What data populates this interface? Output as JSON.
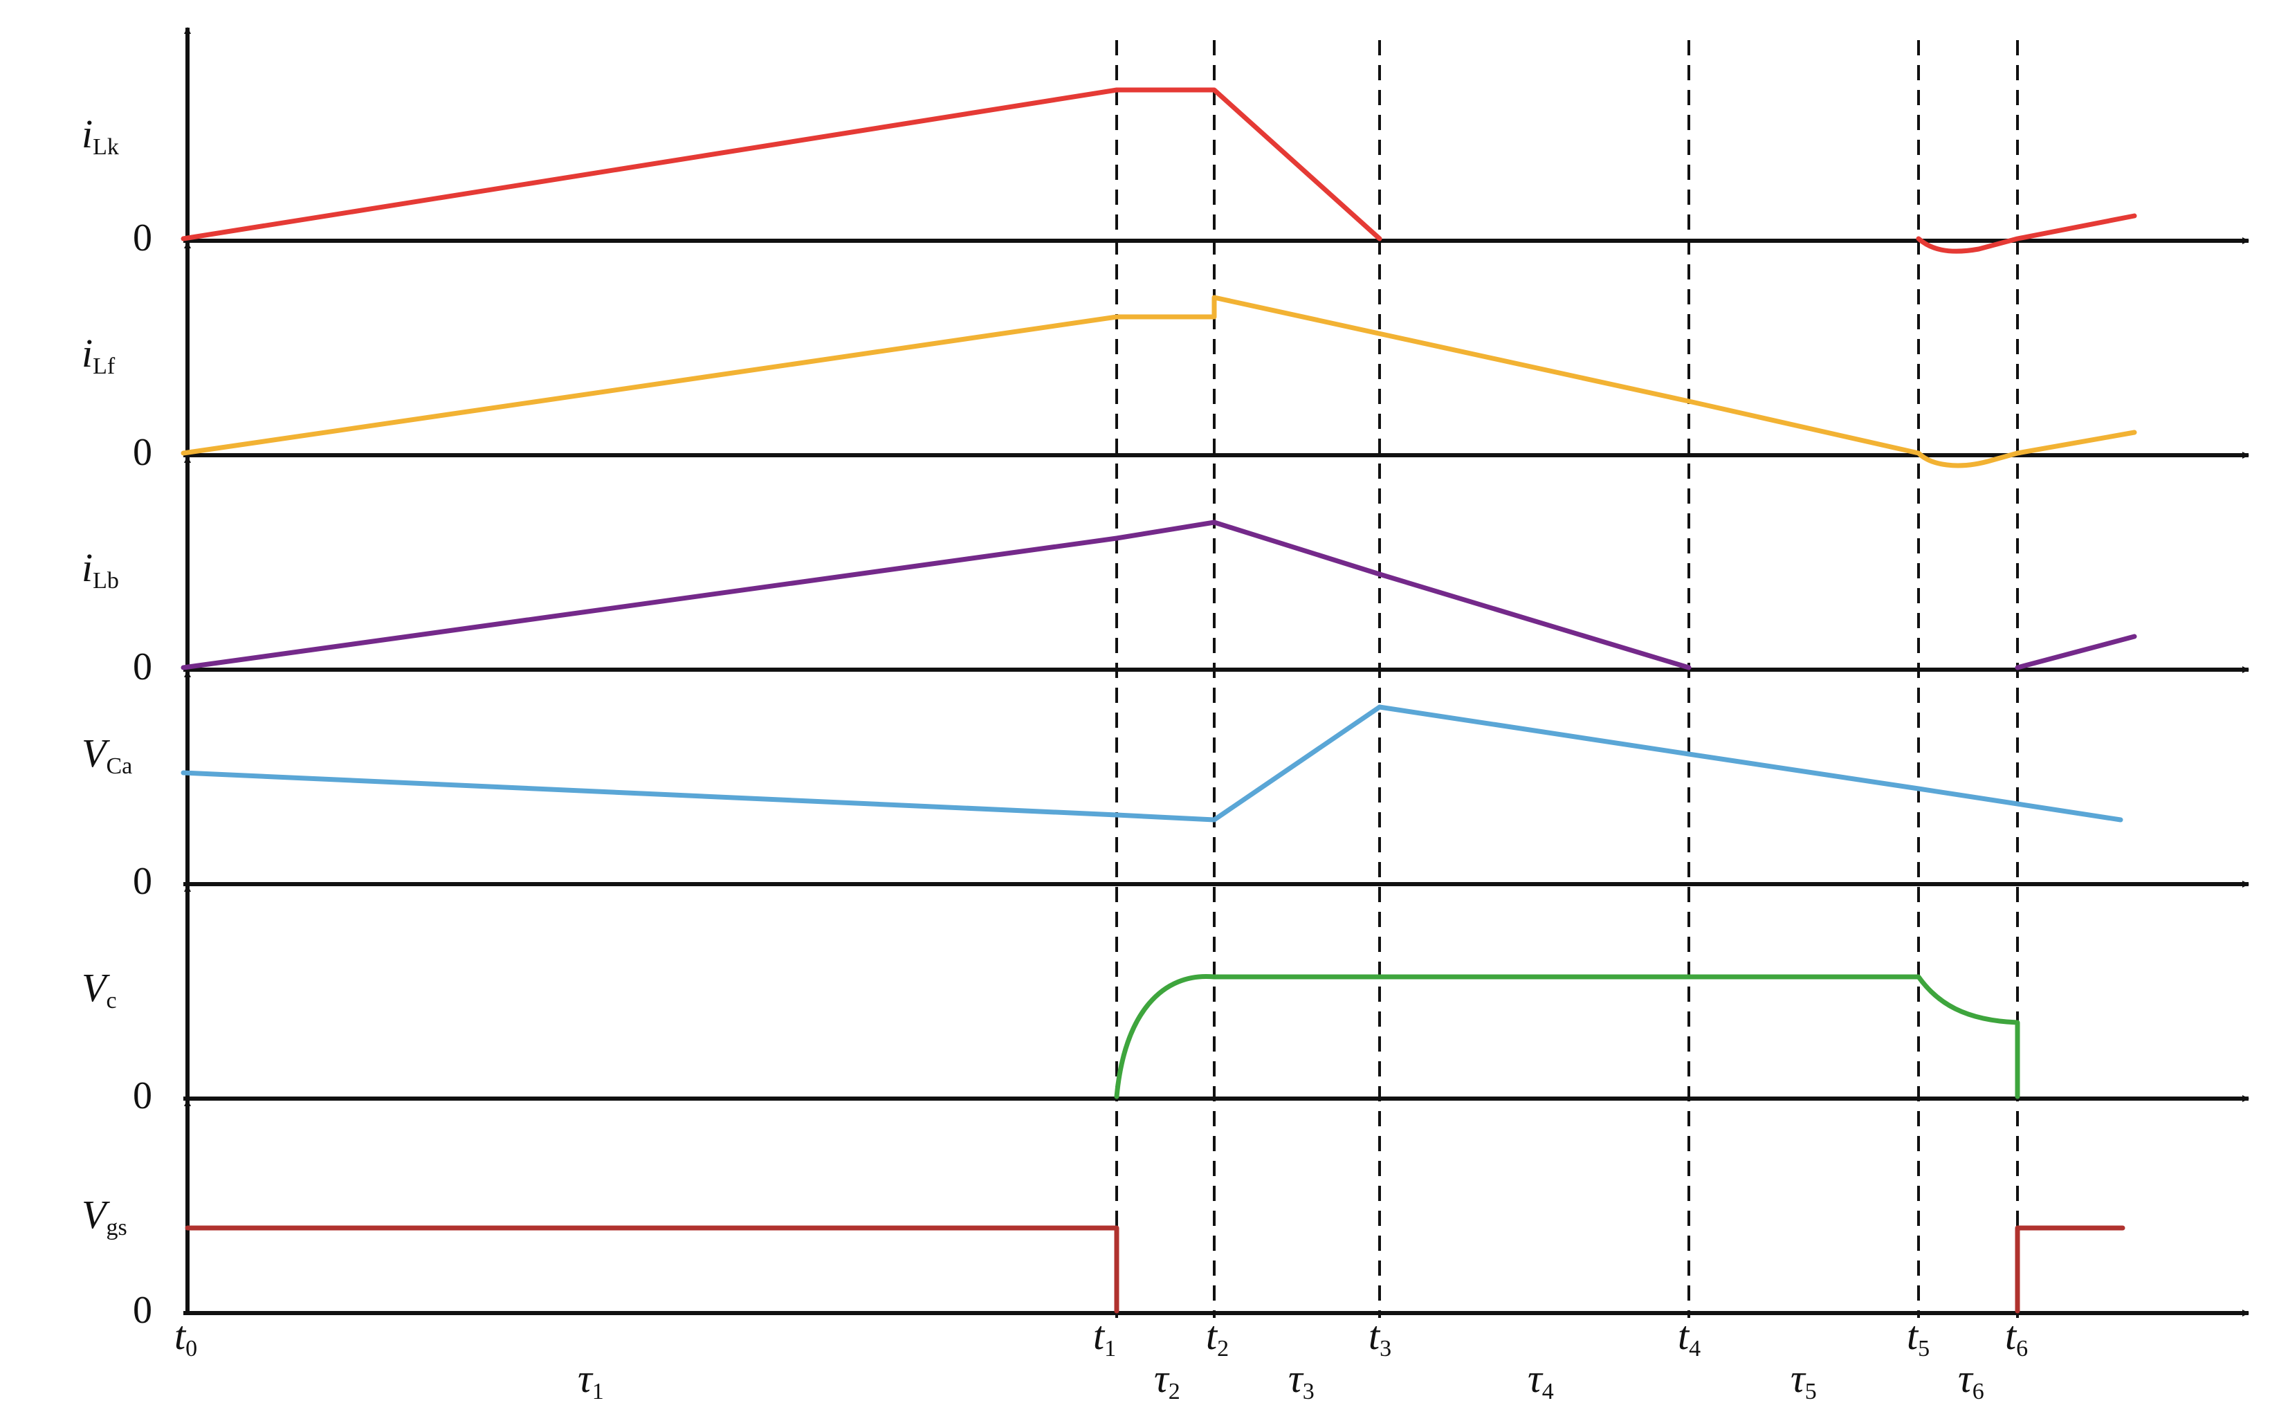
{
  "diagram": {
    "traces": [
      {
        "id": "iLk",
        "var": "i",
        "sub": "Lk",
        "zero_label": "0",
        "color": "#e53a35"
      },
      {
        "id": "iLf",
        "var": "i",
        "sub": "Lf",
        "zero_label": "0",
        "color": "#f2b233"
      },
      {
        "id": "iLb",
        "var": "i",
        "sub": "Lb",
        "zero_label": "0",
        "color": "#74298a"
      },
      {
        "id": "VCa",
        "var": "V",
        "sub": "Ca",
        "zero_label": "0",
        "color": "#5aa6d6"
      },
      {
        "id": "Vc",
        "var": "V",
        "sub": "c",
        "zero_label": "0",
        "color": "#3ea53d"
      },
      {
        "id": "Vgs",
        "var": "V",
        "sub": "gs",
        "zero_label": "0",
        "color": "#b0322e"
      }
    ],
    "time_instants": [
      {
        "var": "t",
        "sub": "0"
      },
      {
        "var": "t",
        "sub": "1"
      },
      {
        "var": "t",
        "sub": "2"
      },
      {
        "var": "t",
        "sub": "3"
      },
      {
        "var": "t",
        "sub": "4"
      },
      {
        "var": "t",
        "sub": "5"
      },
      {
        "var": "t",
        "sub": "6"
      }
    ],
    "intervals": [
      {
        "var": "τ",
        "sub": "1"
      },
      {
        "var": "τ",
        "sub": "2"
      },
      {
        "var": "τ",
        "sub": "3"
      },
      {
        "var": "τ",
        "sub": "4"
      },
      {
        "var": "τ",
        "sub": "5"
      },
      {
        "var": "τ",
        "sub": "6"
      }
    ],
    "axis_color": "#111111"
  }
}
